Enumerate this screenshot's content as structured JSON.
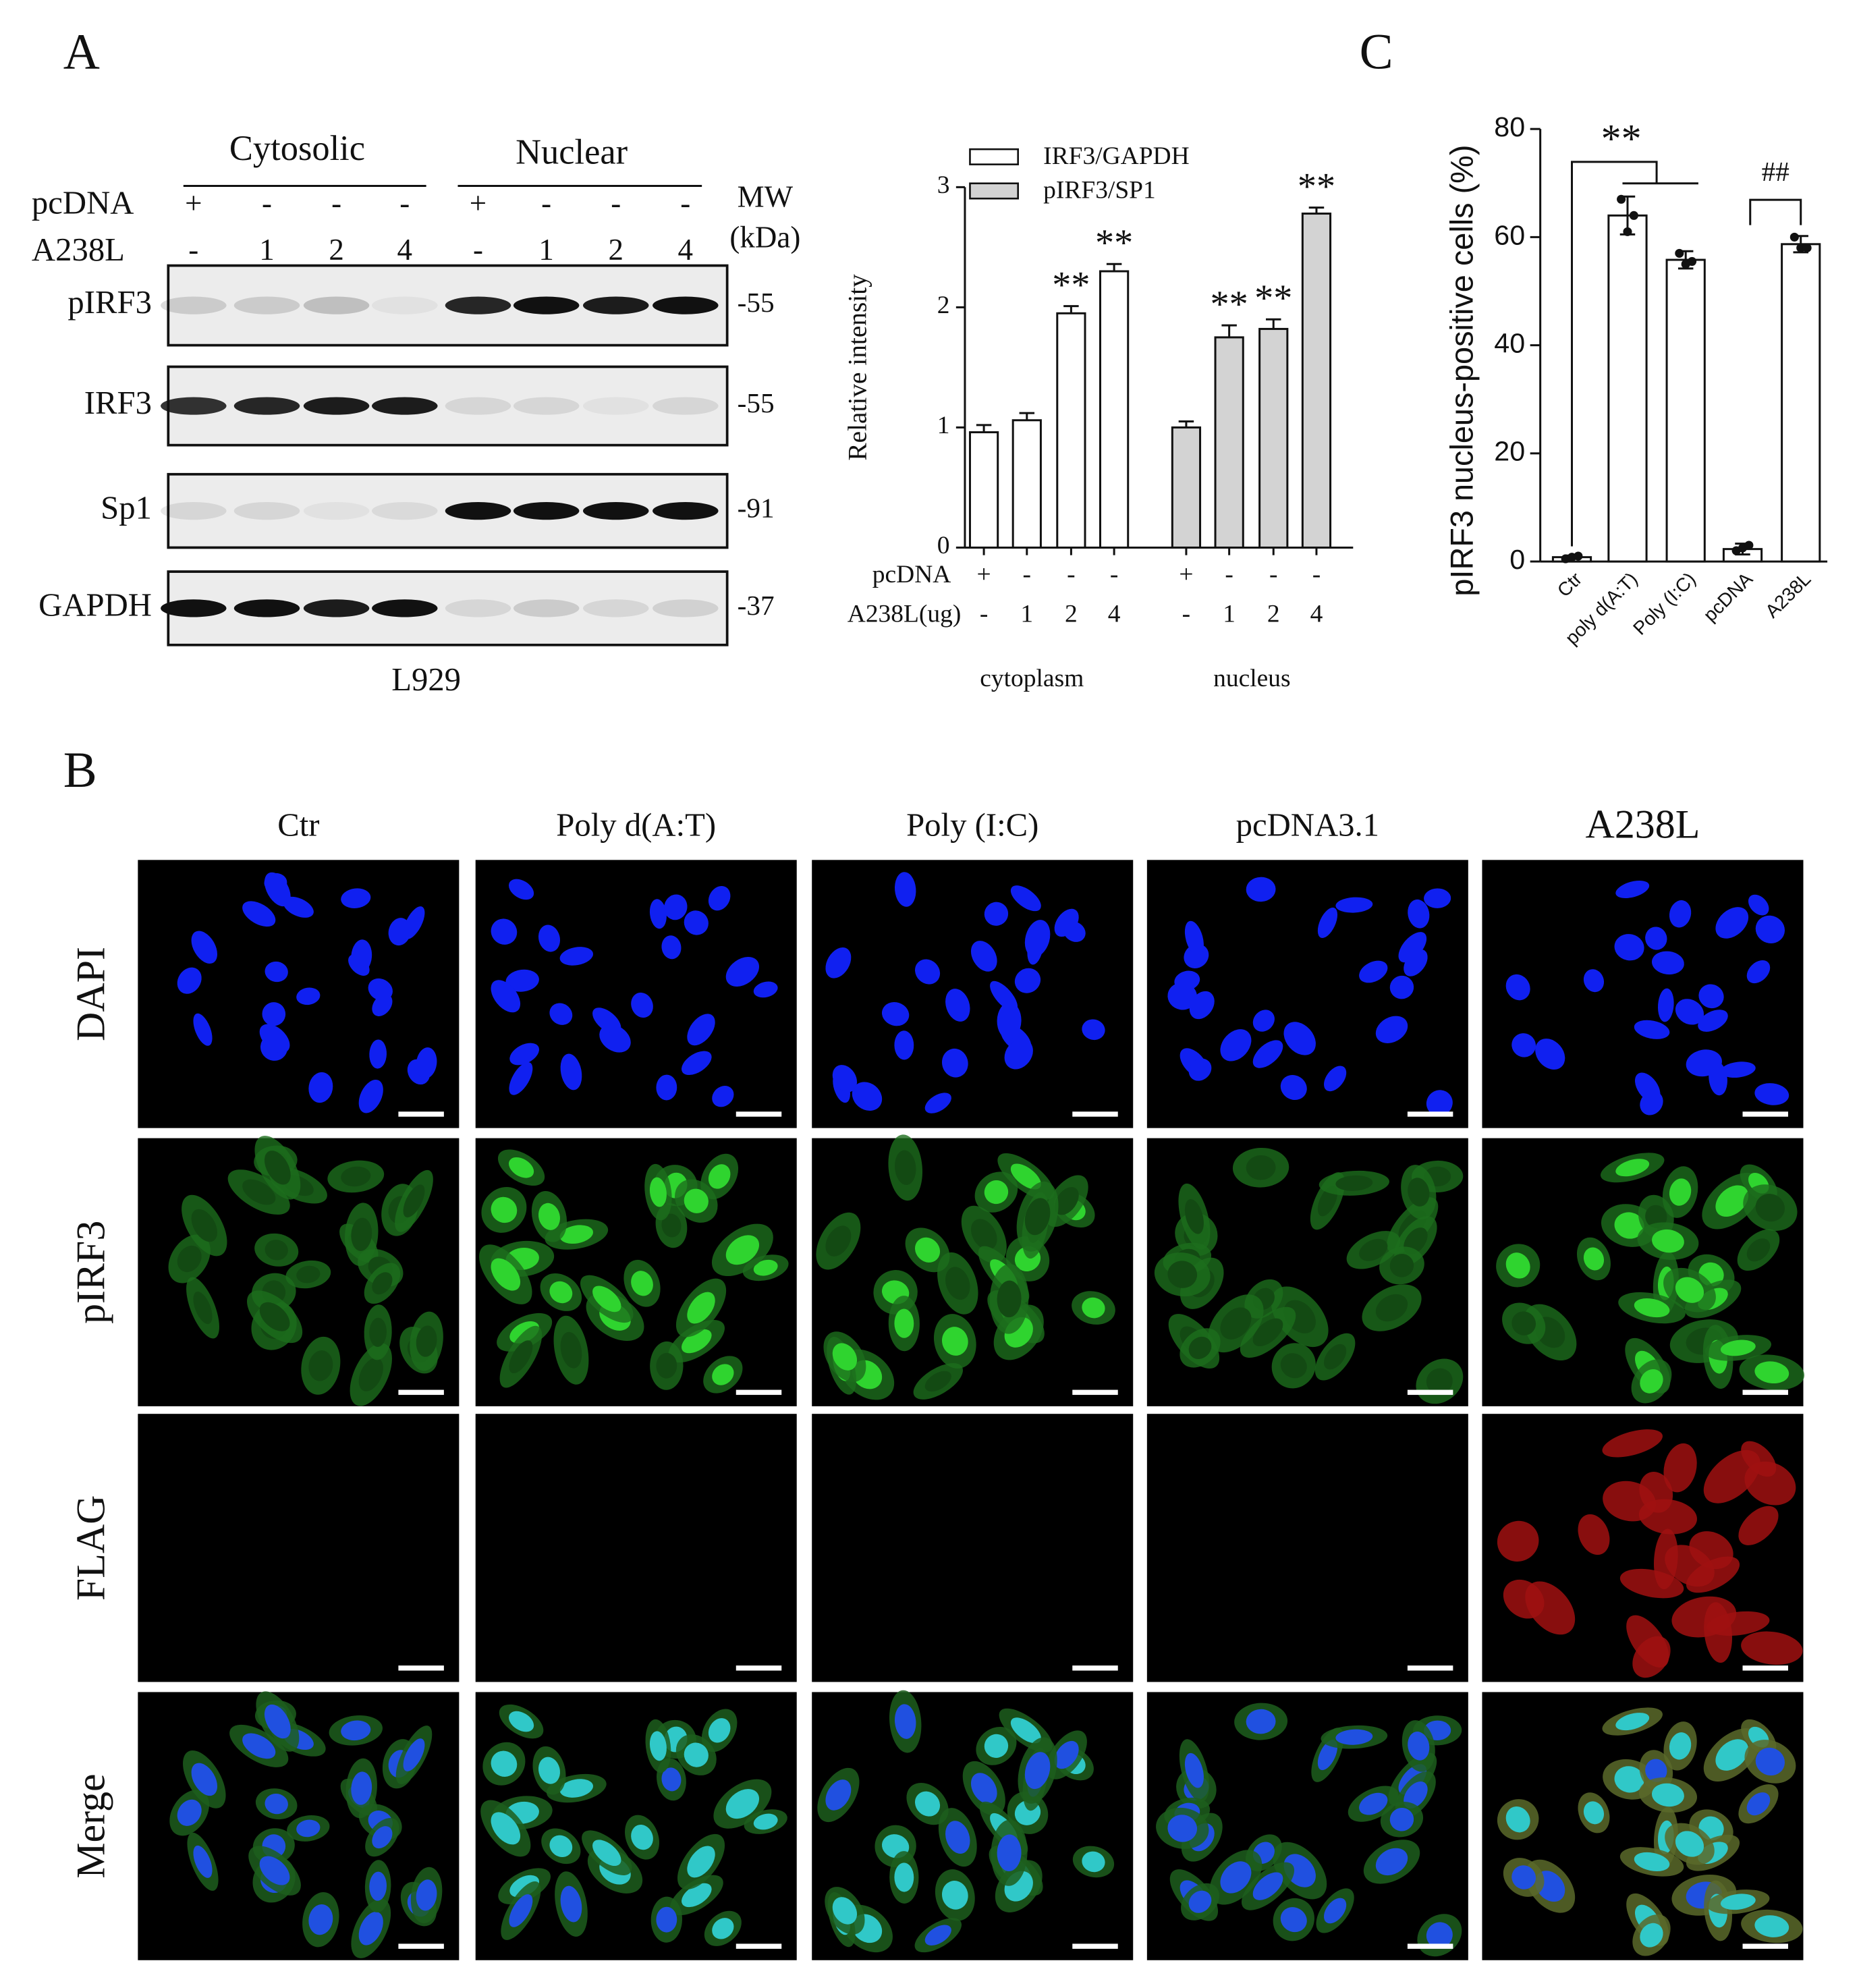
{
  "panels": {
    "a": "A",
    "b": "B",
    "c": "C"
  },
  "blot": {
    "fractions": [
      "Cytosolic",
      "Nuclear"
    ],
    "treatments": [
      {
        "name": "pcDNA",
        "lanes": [
          "+",
          "-",
          "-",
          "-",
          "+",
          "-",
          "-",
          "-"
        ]
      },
      {
        "name": "A238L",
        "lanes": [
          "-",
          "1",
          "2",
          "4",
          "-",
          "1",
          "2",
          "4"
        ]
      }
    ],
    "mw_title": "MW",
    "mw_unit": "(kDa)",
    "rows": [
      {
        "name": "pIRF3",
        "mw": "-55"
      },
      {
        "name": "IRF3",
        "mw": "-55"
      },
      {
        "name": "Sp1",
        "mw": "-91"
      },
      {
        "name": "GAPDH",
        "mw": "-37"
      }
    ],
    "cell_line": "L929"
  },
  "chart_data": [
    {
      "type": "bar",
      "y_label": "Relative intensity",
      "ylim": [
        0,
        3
      ],
      "yticks": [
        0,
        1,
        2,
        3
      ],
      "groups": [
        "cytoplasm",
        "nucleus"
      ],
      "conditions": [
        {
          "name": "pcDNA",
          "values": [
            "+",
            "-",
            "-",
            "-"
          ]
        },
        {
          "name": "A238L(ug)",
          "values": [
            "-",
            "1",
            "2",
            "4"
          ]
        }
      ],
      "series": [
        {
          "name": "IRF3/GAPDH",
          "color": "#ffffff",
          "values": [
            0.96,
            1.06,
            1.95,
            2.3
          ],
          "errors": [
            0.06,
            0.06,
            0.06,
            0.06
          ],
          "significance": [
            null,
            null,
            "**",
            "**"
          ]
        },
        {
          "name": "pIRF3/SP1",
          "color": "#d3d3d3",
          "values": [
            1.0,
            1.75,
            1.82,
            2.78
          ],
          "errors": [
            0.05,
            0.1,
            0.08,
            0.05
          ],
          "significance": [
            null,
            "**",
            "**",
            "**"
          ]
        }
      ]
    },
    {
      "type": "bar",
      "y_label": "pIRF3 nucleus-positive cells (%)",
      "ylim": [
        0,
        80
      ],
      "yticks": [
        0,
        20,
        40,
        60,
        80
      ],
      "categories": [
        "Ctr",
        "poly d(A:T)",
        "Poly (I:C)",
        "pcDNA",
        "A238L"
      ],
      "values": [
        0.8,
        64,
        55.8,
        2.3,
        58.7
      ],
      "errors": [
        0.3,
        3.5,
        1.6,
        1.0,
        1.5
      ],
      "points": [
        [
          0.5,
          0.8,
          1.0
        ],
        [
          67,
          61,
          64
        ],
        [
          57,
          55,
          55.5
        ],
        [
          2,
          2.5,
          3
        ],
        [
          60,
          58,
          58
        ]
      ],
      "color": "#ffffff",
      "annotations": [
        "**",
        "##"
      ]
    }
  ],
  "microscopy": {
    "columns": [
      "Ctr",
      "Poly d(A:T)",
      "Poly (I:C)",
      "pcDNA3.1",
      "A238L"
    ],
    "rows": [
      "DAPI",
      "pIRF3",
      "FLAG",
      "Merge"
    ]
  }
}
